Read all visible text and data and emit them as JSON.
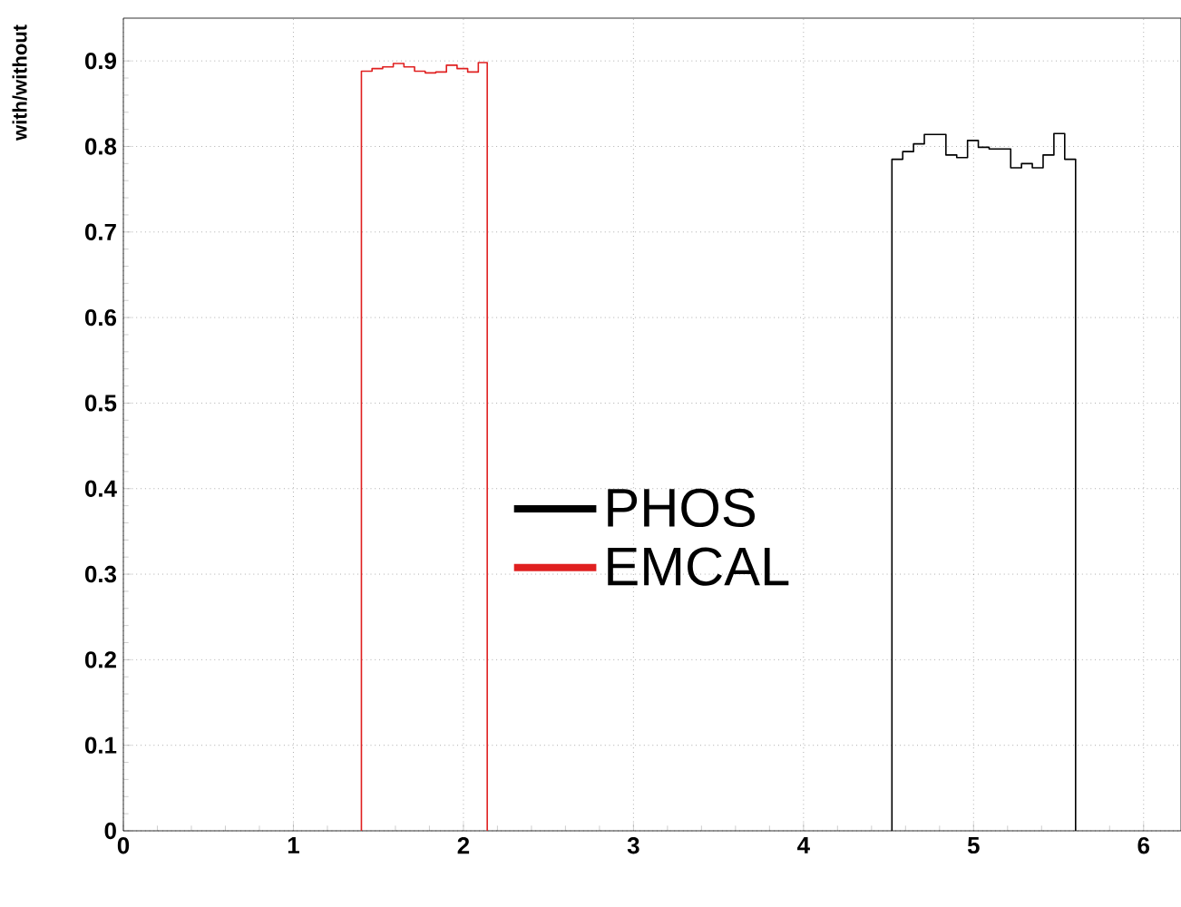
{
  "chart_data": {
    "type": "step",
    "ylabel": "with/without",
    "xlim": [
      0,
      6.22
    ],
    "ylim": [
      0,
      0.95
    ],
    "xticks": [
      0,
      1,
      2,
      3,
      4,
      5,
      6
    ],
    "yticks": [
      0,
      0.1,
      0.2,
      0.3,
      0.4,
      0.5,
      0.6,
      0.7,
      0.8,
      0.9
    ],
    "grid": true,
    "legend": "center",
    "series": [
      {
        "name": "PHOS",
        "color": "#000000",
        "x": [
          4.52,
          4.52,
          4.5835,
          4.647,
          4.7105,
          4.774,
          4.8375,
          4.901,
          4.9645,
          5.028,
          5.0915,
          5.155,
          5.2185,
          5.282,
          5.3455,
          5.409,
          5.4725,
          5.536,
          5.6
        ],
        "values": [
          0,
          0.785,
          0.794,
          0.803,
          0.814,
          0.814,
          0.79,
          0.787,
          0.807,
          0.799,
          0.797,
          0.797,
          0.775,
          0.78,
          0.775,
          0.79,
          0.815,
          0.785,
          0
        ]
      },
      {
        "name": "EMCAL",
        "color": "#e02020",
        "x": [
          1.4,
          1.4,
          1.4625,
          1.525,
          1.5875,
          1.65,
          1.7125,
          1.775,
          1.8375,
          1.9,
          1.9625,
          2.025,
          2.0875,
          2.14
        ],
        "values": [
          0,
          0.888,
          0.891,
          0.893,
          0.897,
          0.893,
          0.888,
          0.886,
          0.887,
          0.895,
          0.891,
          0.887,
          0.898,
          0
        ]
      }
    ]
  }
}
